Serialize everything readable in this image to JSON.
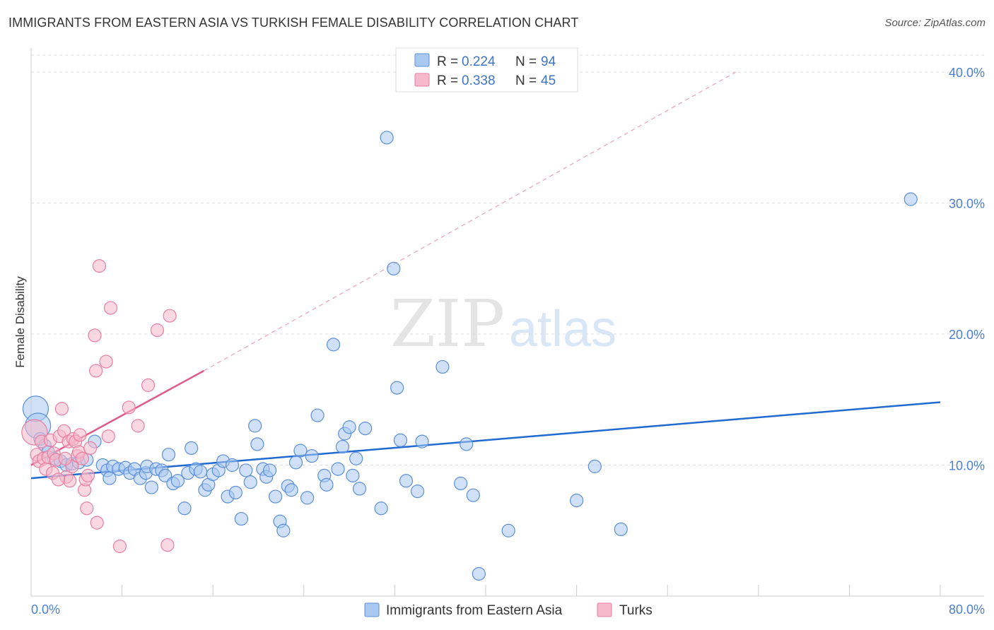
{
  "title": "IMMIGRANTS FROM EASTERN ASIA VS TURKISH FEMALE DISABILITY CORRELATION CHART",
  "source": "Source: ZipAtlas.com",
  "watermark": {
    "part1": "ZIP",
    "part2": "atlas"
  },
  "legend": {
    "r_label": "R =",
    "n_label": "N =",
    "items": [
      {
        "r": "0.224",
        "n": "94"
      },
      {
        "r": "0.338",
        "n": "45"
      }
    ]
  },
  "colors": {
    "blue_fill": "#a9c8f0",
    "blue_stroke": "#5b8fd8",
    "blue_line": "#1f6bd1",
    "pink_fill": "#f6b8cb",
    "pink_stroke": "#e77fa1",
    "pink_line": "#e05a88",
    "tick_text": "#4a7fd0"
  },
  "chart_data": {
    "type": "scatter",
    "ylabel": "Female Disability",
    "xlim": [
      0,
      80
    ],
    "ylim": [
      0,
      42
    ],
    "x_tick_labels": [
      "0.0%",
      "80.0%"
    ],
    "y_ticks": [
      10,
      20,
      30,
      40
    ],
    "y_tick_labels": [
      "10.0%",
      "20.0%",
      "30.0%",
      "40.0%"
    ],
    "series": [
      {
        "name": "Immigrants from Eastern Asia",
        "trend": {
          "x": [
            0,
            80
          ],
          "y": [
            9.0,
            14.8
          ],
          "style": "solid"
        },
        "points": [
          [
            0.4,
            14.3
          ],
          [
            0.6,
            13.0
          ],
          [
            0.8,
            12.0
          ],
          [
            1.2,
            11.5
          ],
          [
            1.5,
            11.0
          ],
          [
            2.0,
            10.5
          ],
          [
            2.6,
            10.3
          ],
          [
            3.1,
            10.0
          ],
          [
            3.6,
            10.1
          ],
          [
            4.2,
            10.2
          ],
          [
            4.9,
            10.4
          ],
          [
            5.6,
            11.8
          ],
          [
            6.3,
            10.0
          ],
          [
            6.7,
            9.6
          ],
          [
            6.9,
            9.0
          ],
          [
            7.2,
            9.9
          ],
          [
            7.7,
            9.7
          ],
          [
            8.3,
            9.8
          ],
          [
            8.7,
            9.4
          ],
          [
            9.1,
            9.7
          ],
          [
            9.6,
            9.0
          ],
          [
            10.1,
            9.4
          ],
          [
            10.2,
            9.9
          ],
          [
            10.6,
            8.3
          ],
          [
            11.0,
            9.7
          ],
          [
            11.5,
            9.6
          ],
          [
            11.8,
            9.2
          ],
          [
            12.1,
            10.8
          ],
          [
            12.5,
            8.6
          ],
          [
            12.9,
            8.8
          ],
          [
            13.5,
            6.7
          ],
          [
            13.8,
            9.4
          ],
          [
            14.1,
            11.3
          ],
          [
            14.5,
            9.7
          ],
          [
            14.9,
            9.5
          ],
          [
            15.3,
            8.1
          ],
          [
            15.6,
            8.5
          ],
          [
            16.0,
            9.3
          ],
          [
            16.5,
            9.6
          ],
          [
            16.9,
            10.3
          ],
          [
            17.3,
            7.6
          ],
          [
            17.7,
            10.0
          ],
          [
            18.0,
            7.9
          ],
          [
            18.5,
            5.9
          ],
          [
            18.9,
            9.6
          ],
          [
            19.3,
            8.7
          ],
          [
            19.7,
            13.0
          ],
          [
            19.9,
            11.6
          ],
          [
            20.4,
            9.7
          ],
          [
            20.7,
            9.1
          ],
          [
            21.0,
            9.6
          ],
          [
            21.5,
            7.6
          ],
          [
            21.9,
            5.7
          ],
          [
            22.2,
            5.0
          ],
          [
            22.6,
            8.4
          ],
          [
            22.9,
            8.1
          ],
          [
            23.3,
            10.2
          ],
          [
            23.7,
            11.1
          ],
          [
            24.3,
            7.5
          ],
          [
            24.7,
            10.7
          ],
          [
            25.2,
            13.8
          ],
          [
            25.8,
            9.2
          ],
          [
            26.0,
            8.5
          ],
          [
            26.6,
            19.2
          ],
          [
            27.0,
            9.7
          ],
          [
            27.4,
            11.4
          ],
          [
            27.6,
            12.4
          ],
          [
            28.0,
            12.9
          ],
          [
            28.3,
            9.2
          ],
          [
            28.6,
            10.5
          ],
          [
            28.9,
            8.2
          ],
          [
            29.4,
            12.8
          ],
          [
            30.8,
            6.7
          ],
          [
            31.3,
            35.0
          ],
          [
            31.9,
            25.0
          ],
          [
            32.2,
            15.9
          ],
          [
            32.5,
            11.9
          ],
          [
            33.0,
            8.8
          ],
          [
            34.0,
            8.0
          ],
          [
            34.4,
            11.8
          ],
          [
            36.2,
            17.5
          ],
          [
            37.8,
            8.6
          ],
          [
            38.3,
            11.6
          ],
          [
            38.9,
            7.7
          ],
          [
            39.4,
            1.7
          ],
          [
            42.0,
            5.0
          ],
          [
            48.0,
            7.3
          ],
          [
            49.6,
            9.9
          ],
          [
            51.9,
            5.1
          ],
          [
            77.4,
            30.3
          ]
        ],
        "large_points": [
          [
            0.4,
            14.3
          ],
          [
            0.6,
            13.0
          ]
        ]
      },
      {
        "name": "Turks",
        "trend": {
          "x": [
            0,
            15.2
          ],
          "y": [
            10.0,
            17.2
          ],
          "style": "solid",
          "extended": {
            "x": [
              15.2,
              62
            ],
            "y": [
              17.2,
              40.0
            ],
            "style": "dashed"
          }
        },
        "points": [
          [
            0.3,
            12.5
          ],
          [
            0.5,
            10.8
          ],
          [
            0.7,
            10.3
          ],
          [
            0.9,
            11.8
          ],
          [
            1.1,
            10.5
          ],
          [
            1.3,
            9.7
          ],
          [
            1.5,
            10.6
          ],
          [
            1.7,
            11.9
          ],
          [
            2.0,
            10.9
          ],
          [
            2.2,
            10.4
          ],
          [
            2.5,
            12.2
          ],
          [
            2.7,
            14.3
          ],
          [
            2.9,
            12.6
          ],
          [
            3.1,
            9.1
          ],
          [
            3.3,
            11.8
          ],
          [
            3.4,
            8.8
          ],
          [
            3.6,
            9.9
          ],
          [
            3.7,
            12.0
          ],
          [
            3.9,
            11.8
          ],
          [
            4.1,
            10.7
          ],
          [
            4.2,
            11.0
          ],
          [
            4.3,
            12.3
          ],
          [
            4.5,
            10.5
          ],
          [
            4.7,
            8.1
          ],
          [
            4.8,
            8.9
          ],
          [
            4.9,
            6.7
          ],
          [
            5.0,
            9.2
          ],
          [
            5.2,
            11.3
          ],
          [
            5.6,
            19.9
          ],
          [
            5.7,
            17.2
          ],
          [
            5.8,
            5.6
          ],
          [
            6.0,
            25.2
          ],
          [
            6.6,
            17.9
          ],
          [
            6.8,
            12.2
          ],
          [
            7.0,
            22.0
          ],
          [
            7.8,
            3.8
          ],
          [
            8.6,
            14.4
          ],
          [
            9.4,
            13.0
          ],
          [
            10.3,
            16.1
          ],
          [
            11.1,
            20.3
          ],
          [
            12.0,
            3.9
          ],
          [
            12.2,
            21.4
          ],
          [
            3.0,
            10.5
          ],
          [
            1.9,
            9.4
          ],
          [
            2.4,
            8.9
          ]
        ],
        "large_points": [
          [
            0.3,
            12.5
          ]
        ]
      }
    ]
  },
  "bottom_legend": [
    {
      "label": "Immigrants from Eastern Asia"
    },
    {
      "label": "Turks"
    }
  ]
}
